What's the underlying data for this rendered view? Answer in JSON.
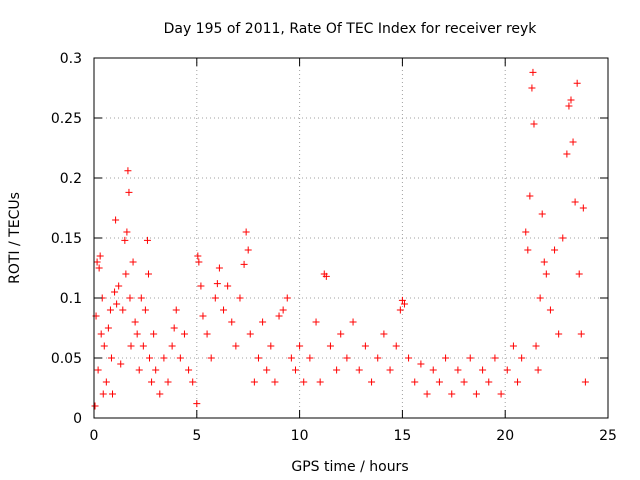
{
  "chart_data": {
    "type": "scatter",
    "title": "Day 195 of 2011, Rate Of TEC Index for receiver reyk",
    "xlabel": "GPS time / hours",
    "ylabel": "ROTI / TECUs",
    "xlim": [
      0,
      25
    ],
    "ylim": [
      0,
      0.3
    ],
    "xticks": [
      "0",
      "5",
      "10",
      "15",
      "20",
      "25"
    ],
    "yticks": [
      "0",
      "0.05",
      "0.1",
      "0.15",
      "0.2",
      "0.25",
      "0.3"
    ],
    "grid": true,
    "marker": "+",
    "color": "#ff0000",
    "series": [
      {
        "values": [
          [
            0.05,
            0.01
          ],
          [
            0.1,
            0.085
          ],
          [
            0.15,
            0.13
          ],
          [
            0.2,
            0.04
          ],
          [
            0.25,
            0.125
          ],
          [
            0.3,
            0.135
          ],
          [
            0.35,
            0.07
          ],
          [
            0.4,
            0.1
          ],
          [
            0.45,
            0.02
          ],
          [
            0.5,
            0.06
          ],
          [
            0.6,
            0.03
          ],
          [
            0.7,
            0.075
          ],
          [
            0.8,
            0.09
          ],
          [
            0.85,
            0.05
          ],
          [
            0.9,
            0.02
          ],
          [
            1.0,
            0.105
          ],
          [
            1.05,
            0.165
          ],
          [
            1.1,
            0.095
          ],
          [
            1.2,
            0.11
          ],
          [
            1.3,
            0.045
          ],
          [
            1.4,
            0.09
          ],
          [
            1.5,
            0.148
          ],
          [
            1.55,
            0.12
          ],
          [
            1.6,
            0.155
          ],
          [
            1.65,
            0.206
          ],
          [
            1.7,
            0.188
          ],
          [
            1.75,
            0.1
          ],
          [
            1.8,
            0.06
          ],
          [
            1.9,
            0.13
          ],
          [
            2.0,
            0.08
          ],
          [
            2.1,
            0.07
          ],
          [
            2.2,
            0.04
          ],
          [
            2.3,
            0.1
          ],
          [
            2.4,
            0.06
          ],
          [
            2.5,
            0.09
          ],
          [
            2.6,
            0.148
          ],
          [
            2.65,
            0.12
          ],
          [
            2.7,
            0.05
          ],
          [
            2.8,
            0.03
          ],
          [
            2.9,
            0.07
          ],
          [
            3.0,
            0.04
          ],
          [
            3.2,
            0.02
          ],
          [
            3.4,
            0.05
          ],
          [
            3.6,
            0.03
          ],
          [
            3.8,
            0.06
          ],
          [
            3.9,
            0.075
          ],
          [
            4.0,
            0.09
          ],
          [
            4.2,
            0.05
          ],
          [
            4.4,
            0.07
          ],
          [
            4.6,
            0.04
          ],
          [
            4.8,
            0.03
          ],
          [
            5.0,
            0.012
          ],
          [
            5.05,
            0.135
          ],
          [
            5.1,
            0.13
          ],
          [
            5.2,
            0.11
          ],
          [
            5.3,
            0.085
          ],
          [
            5.5,
            0.07
          ],
          [
            5.7,
            0.05
          ],
          [
            5.9,
            0.1
          ],
          [
            6.0,
            0.112
          ],
          [
            6.1,
            0.125
          ],
          [
            6.3,
            0.09
          ],
          [
            6.5,
            0.11
          ],
          [
            6.7,
            0.08
          ],
          [
            6.9,
            0.06
          ],
          [
            7.1,
            0.1
          ],
          [
            7.3,
            0.128
          ],
          [
            7.4,
            0.155
          ],
          [
            7.5,
            0.14
          ],
          [
            7.6,
            0.07
          ],
          [
            7.8,
            0.03
          ],
          [
            8.0,
            0.05
          ],
          [
            8.2,
            0.08
          ],
          [
            8.4,
            0.04
          ],
          [
            8.6,
            0.06
          ],
          [
            8.8,
            0.03
          ],
          [
            9.0,
            0.085
          ],
          [
            9.2,
            0.09
          ],
          [
            9.4,
            0.1
          ],
          [
            9.6,
            0.05
          ],
          [
            9.8,
            0.04
          ],
          [
            10.0,
            0.06
          ],
          [
            10.2,
            0.03
          ],
          [
            10.5,
            0.05
          ],
          [
            10.8,
            0.08
          ],
          [
            11.0,
            0.03
          ],
          [
            11.2,
            0.12
          ],
          [
            11.3,
            0.118
          ],
          [
            11.5,
            0.06
          ],
          [
            11.8,
            0.04
          ],
          [
            12.0,
            0.07
          ],
          [
            12.3,
            0.05
          ],
          [
            12.6,
            0.08
          ],
          [
            12.9,
            0.04
          ],
          [
            13.2,
            0.06
          ],
          [
            13.5,
            0.03
          ],
          [
            13.8,
            0.05
          ],
          [
            14.1,
            0.07
          ],
          [
            14.4,
            0.04
          ],
          [
            14.7,
            0.06
          ],
          [
            14.9,
            0.09
          ],
          [
            15.0,
            0.098
          ],
          [
            15.1,
            0.095
          ],
          [
            15.3,
            0.05
          ],
          [
            15.6,
            0.03
          ],
          [
            15.9,
            0.045
          ],
          [
            16.2,
            0.02
          ],
          [
            16.5,
            0.04
          ],
          [
            16.8,
            0.03
          ],
          [
            17.1,
            0.05
          ],
          [
            17.4,
            0.02
          ],
          [
            17.7,
            0.04
          ],
          [
            18.0,
            0.03
          ],
          [
            18.3,
            0.05
          ],
          [
            18.6,
            0.02
          ],
          [
            18.9,
            0.04
          ],
          [
            19.2,
            0.03
          ],
          [
            19.5,
            0.05
          ],
          [
            19.8,
            0.02
          ],
          [
            20.1,
            0.04
          ],
          [
            20.4,
            0.06
          ],
          [
            20.6,
            0.03
          ],
          [
            20.8,
            0.05
          ],
          [
            21.0,
            0.155
          ],
          [
            21.1,
            0.14
          ],
          [
            21.2,
            0.185
          ],
          [
            21.3,
            0.275
          ],
          [
            21.35,
            0.288
          ],
          [
            21.4,
            0.245
          ],
          [
            21.5,
            0.06
          ],
          [
            21.6,
            0.04
          ],
          [
            21.7,
            0.1
          ],
          [
            21.8,
            0.17
          ],
          [
            21.9,
            0.13
          ],
          [
            22.0,
            0.12
          ],
          [
            22.2,
            0.09
          ],
          [
            22.4,
            0.14
          ],
          [
            22.6,
            0.07
          ],
          [
            22.8,
            0.15
          ],
          [
            23.0,
            0.22
          ],
          [
            23.1,
            0.26
          ],
          [
            23.2,
            0.265
          ],
          [
            23.3,
            0.23
          ],
          [
            23.4,
            0.18
          ],
          [
            23.5,
            0.279
          ],
          [
            23.6,
            0.12
          ],
          [
            23.7,
            0.07
          ],
          [
            23.8,
            0.175
          ],
          [
            23.9,
            0.03
          ]
        ]
      }
    ]
  }
}
